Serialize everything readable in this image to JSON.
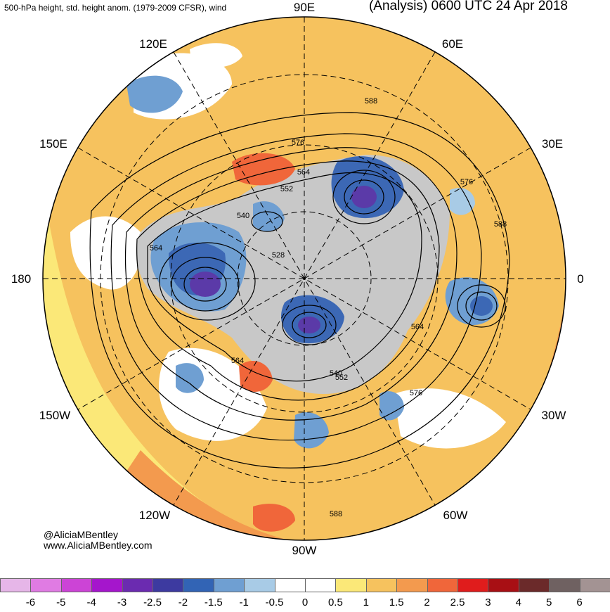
{
  "header": {
    "left": "500-hPa height, std. height anom. (1979-2009 CFSR), wind",
    "right": "(Analysis) 0600 UTC 24 Apr 2018"
  },
  "credits": {
    "handle": "@AliciaMBentley",
    "website": "www.AliciaMBentley.com"
  },
  "map": {
    "projection": "north-polar-stereographic",
    "meridian_labels": [
      "90E",
      "60E",
      "30E",
      "0",
      "30W",
      "60W",
      "90W",
      "120W",
      "150W",
      "180",
      "150E",
      "120E"
    ],
    "contour_labels": [
      "588",
      "576",
      "564",
      "552",
      "540",
      "528",
      "564",
      "576",
      "588",
      "564",
      "552",
      "540",
      "576",
      "564",
      "588"
    ],
    "colors": {
      "land_gray": "#c8c8c8",
      "neg_light": "#a8cbe6",
      "neg_mid": "#6f9fd2",
      "neg_dark": "#3c68b5",
      "neg_deep": "#5b3aa8",
      "pos_yellow": "#fbe878",
      "pos_light_orange": "#f6c25e",
      "pos_orange": "#f39a4e",
      "pos_red_orange": "#f0663a"
    }
  },
  "colorbar": {
    "labels": [
      "-6",
      "-5",
      "-4",
      "-3",
      "-2.5",
      "-2",
      "-1.5",
      "-1",
      "-0.5",
      "0",
      "0.5",
      "1",
      "1.5",
      "2",
      "2.5",
      "3",
      "4",
      "5",
      "6"
    ],
    "colors": [
      "#e6b6e8",
      "#e07be3",
      "#cc44d6",
      "#a516cc",
      "#6b2bb0",
      "#3d3aa0",
      "#3264b5",
      "#6f9fd2",
      "#a8cbe6",
      "#ffffff",
      "#ffffff",
      "#fbe878",
      "#f6c25e",
      "#f39a4e",
      "#f0663a",
      "#e01c1c",
      "#a80f14",
      "#6b2a2a",
      "#6f6161",
      "#a39393"
    ]
  }
}
